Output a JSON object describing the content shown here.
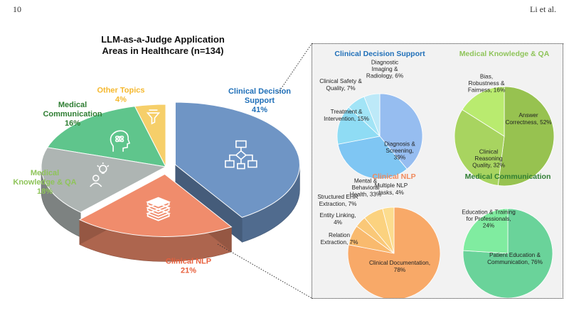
{
  "header": {
    "page_number": "10",
    "authors": "Li et al."
  },
  "chart_data": [
    {
      "type": "pie",
      "title": "LLM-as-a-Judge Application Areas in Healthcare (n=134)",
      "title_lines": [
        "LLM-as-a-Judge Application",
        "Areas in Healthcare (n=134)"
      ],
      "style": "3d-exploded",
      "slices": [
        {
          "name": "Clinical Decision Support",
          "label_lines": [
            "Clinical Decision",
            "Support"
          ],
          "pct_label": "41%",
          "value": 41,
          "color": "#6f95c5",
          "label_color": "#1f6fb8",
          "icon": "flowchart-icon",
          "exploded": true
        },
        {
          "name": "Clinical NLP",
          "label_lines": [
            "Clinical NLP"
          ],
          "pct_label": "21%",
          "value": 21,
          "color": "#f08c6c",
          "label_color": "#e8603d",
          "icon": "stacked-documents-icon",
          "exploded": true
        },
        {
          "name": "Medical Knowledge & QA",
          "label_lines": [
            "Medical",
            "Knowledge & QA"
          ],
          "pct_label": "18%",
          "value": 18,
          "color": "#aeb5b3",
          "label_color": "#8fc45a",
          "icon": "person-lightbulb-icon",
          "exploded": false
        },
        {
          "name": "Medical Communication",
          "label_lines": [
            "Medical",
            "Communication"
          ],
          "pct_label": "16%",
          "value": 16,
          "color": "#5fc58c",
          "label_color": "#2e7d32",
          "icon": "head-atom-icon",
          "exploded": false
        },
        {
          "name": "Other Topics",
          "label_lines": [
            "Other Topics"
          ],
          "pct_label": "4%",
          "value": 4,
          "color": "#f6cf6a",
          "label_color": "#f5b82e",
          "icon": "filter-funnel-icon",
          "exploded": false
        }
      ]
    },
    {
      "type": "pie",
      "title": "Clinical Decision Support",
      "title_color": "#1f6fb8",
      "slices": [
        {
          "name": "Diagnosis & Screening",
          "label_lines": [
            "Diagnosis &",
            "Screening,",
            "39%"
          ],
          "value": 39,
          "color": "#96bdf0"
        },
        {
          "name": "Mental & Behavioral Health",
          "label_lines": [
            "Mental &",
            "Behavioral",
            "Health, 33%"
          ],
          "value": 33,
          "color": "#7fc6f3"
        },
        {
          "name": "Treatment & Intervention",
          "label_lines": [
            "Treatment &",
            "Intervention, 15%"
          ],
          "value": 15,
          "color": "#8fdcf4"
        },
        {
          "name": "Clinical Safety & Quality",
          "label_lines": [
            "Clinical Safety &",
            "Quality, 7%"
          ],
          "value": 7,
          "color": "#a2e4f6"
        },
        {
          "name": "Diagnostic Imaging & Radiology",
          "label_lines": [
            "Diagnostic",
            "Imaging &",
            "Radiology, 6%"
          ],
          "value": 6,
          "color": "#bde9f8"
        }
      ]
    },
    {
      "type": "pie",
      "title": "Medical Knowledge & QA",
      "title_color": "#8fc45a",
      "slices": [
        {
          "name": "Answer Correctness",
          "label_lines": [
            "Answer",
            "Correctness, 52%"
          ],
          "value": 52,
          "color": "#97c250"
        },
        {
          "name": "Clinical Reasoning Quality",
          "label_lines": [
            "Clinical",
            "Reasoning",
            "Quality, 32%"
          ],
          "value": 32,
          "color": "#a8d460"
        },
        {
          "name": "Bias, Robustness & Fairness",
          "label_lines": [
            "Bias,",
            "Robustness &",
            "Fairness, 16%"
          ],
          "value": 16,
          "color": "#b9eb6f"
        }
      ]
    },
    {
      "type": "pie",
      "title": "Clinical NLP",
      "title_color": "#f08a5d",
      "slices": [
        {
          "name": "Clinical Documentation",
          "label_lines": [
            "Clinical Documentation,",
            "78%"
          ],
          "value": 78,
          "color": "#f8a968"
        },
        {
          "name": "Relation Extraction",
          "label_lines": [
            "Relation",
            "Extraction, 7%"
          ],
          "value": 7,
          "color": "#f9ba6e"
        },
        {
          "name": "Entity Linking",
          "label_lines": [
            "Entity Linking,",
            "4%"
          ],
          "value": 4,
          "color": "#fac878"
        },
        {
          "name": "Structured EHR Extraction",
          "label_lines": [
            "Structured EHR",
            "Extraction, 7%"
          ],
          "value": 7,
          "color": "#fbd27f"
        },
        {
          "name": "Multiple NLP tasks",
          "label_lines": [
            "Multiple NLP",
            "tasks, 4%"
          ],
          "value": 4,
          "color": "#fcdc8e"
        }
      ]
    },
    {
      "type": "pie",
      "title": "Medical Communication",
      "title_color": "#2e7d32",
      "slices": [
        {
          "name": "Patient Education & Communication",
          "label_lines": [
            "Patient Education &",
            "Communication, 76%"
          ],
          "value": 76,
          "color": "#6ad39a"
        },
        {
          "name": "Education & Training for Professionals",
          "label_lines": [
            "Education & Training",
            "for Professionals,",
            "24%"
          ],
          "value": 24,
          "color": "#80eca0"
        }
      ]
    }
  ]
}
